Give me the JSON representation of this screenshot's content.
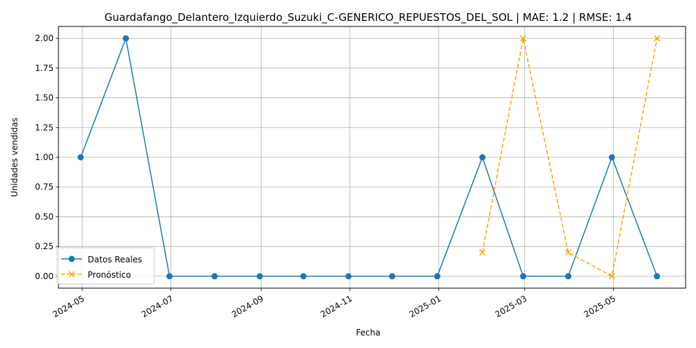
{
  "chart_data": {
    "type": "line",
    "title": "Guardafango_Delantero_Izquierdo_Suzuki_C-GENERICO_REPUESTOS_DEL_SOL | MAE: 1.2 | RMSE: 1.4",
    "xlabel": "Fecha",
    "ylabel": "Unidades vendidas",
    "x_ticks": [
      "2024-05",
      "2024-07",
      "2024-09",
      "2024-11",
      "2025-01",
      "2025-03",
      "2025-05"
    ],
    "y_ticks": [
      "0.00",
      "0.25",
      "0.50",
      "0.75",
      "1.00",
      "1.25",
      "1.50",
      "1.75",
      "2.00"
    ],
    "ylim": [
      -0.1,
      2.1
    ],
    "grid": true,
    "legend_position": "lower-left",
    "series": [
      {
        "name": "Datos Reales",
        "color": "#1f77b4",
        "line_style": "solid",
        "marker": "circle",
        "x": [
          "2024-04-30",
          "2024-05-31",
          "2024-06-30",
          "2024-07-31",
          "2024-08-31",
          "2024-09-30",
          "2024-10-31",
          "2024-11-30",
          "2024-12-31",
          "2025-01-31",
          "2025-02-28",
          "2025-03-31",
          "2025-04-30",
          "2025-05-31"
        ],
        "values": [
          1,
          2,
          0,
          0,
          0,
          0,
          0,
          0,
          0,
          1,
          0,
          0,
          1,
          0
        ]
      },
      {
        "name": "Pronóstico",
        "color": "#ffa500",
        "line_style": "dashed",
        "marker": "x",
        "x": [
          "2025-01-31",
          "2025-02-28",
          "2025-03-31",
          "2025-04-30",
          "2025-05-31"
        ],
        "values": [
          0.2,
          2.0,
          0.2,
          0.0,
          2.0
        ]
      }
    ]
  }
}
